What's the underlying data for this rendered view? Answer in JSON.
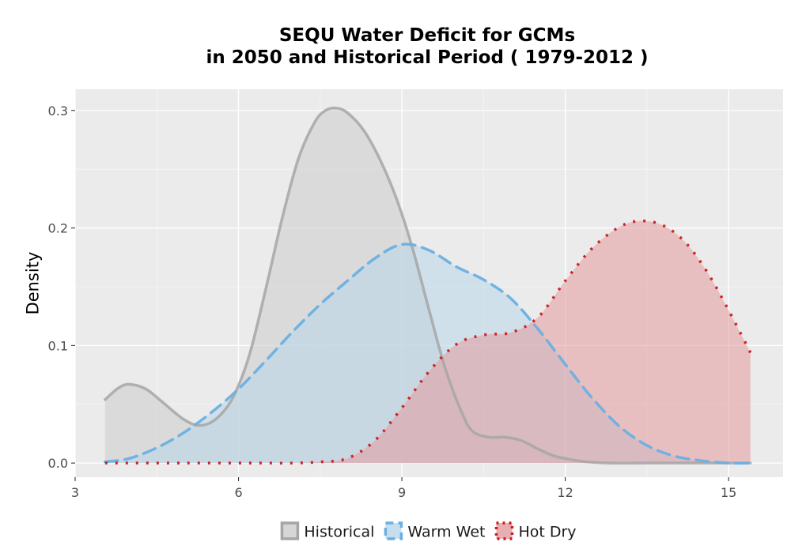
{
  "chart_data": {
    "type": "area",
    "title": "SEQU  Water Deficit for GCMs",
    "subtitle": "in 2050 and Historical Period ( 1979-2012 )",
    "xlabel": "",
    "ylabel": "Density",
    "xlim": [
      3,
      16
    ],
    "ylim": [
      -0.012,
      0.318
    ],
    "x_ticks": [
      3,
      6,
      9,
      12,
      15
    ],
    "x_tick_labels": [
      "3",
      "6",
      "9",
      "12",
      "15"
    ],
    "y_ticks": [
      0.0,
      0.1,
      0.2,
      0.3
    ],
    "y_tick_labels": [
      "0.0",
      "0.1",
      "0.2",
      "0.3"
    ],
    "grid": true,
    "legend_position": "bottom",
    "series": [
      {
        "name": "Historical",
        "line_style": "solid",
        "line_color": "#a6a6a6",
        "fill_color": "#cccccc",
        "x": [
          3.55,
          3.8,
          4.0,
          4.3,
          4.6,
          5.0,
          5.3,
          5.6,
          5.9,
          6.2,
          6.5,
          6.8,
          7.1,
          7.4,
          7.6,
          7.8,
          8.0,
          8.3,
          8.6,
          8.9,
          9.2,
          9.5,
          9.8,
          10.1,
          10.3,
          10.6,
          10.9,
          11.2,
          11.5,
          11.8,
          12.1,
          12.4,
          12.8,
          13.5,
          14.5,
          15.4
        ],
        "y": [
          0.054,
          0.064,
          0.067,
          0.063,
          0.052,
          0.037,
          0.032,
          0.038,
          0.056,
          0.092,
          0.148,
          0.208,
          0.259,
          0.29,
          0.3,
          0.302,
          0.298,
          0.283,
          0.258,
          0.225,
          0.182,
          0.13,
          0.08,
          0.043,
          0.027,
          0.022,
          0.022,
          0.019,
          0.012,
          0.006,
          0.003,
          0.001,
          0.0,
          0.0,
          0.0,
          0.0
        ]
      },
      {
        "name": "Warm Wet",
        "line_style": "dashed",
        "line_color": "#6cb0e0",
        "fill_color": "#b8d7ea",
        "x": [
          3.55,
          4.0,
          4.5,
          5.0,
          5.5,
          6.0,
          6.5,
          7.0,
          7.5,
          8.0,
          8.5,
          9.0,
          9.5,
          10.0,
          10.5,
          11.0,
          11.5,
          12.0,
          12.5,
          13.0,
          13.5,
          14.0,
          14.5,
          15.0,
          15.4
        ],
        "y": [
          0.001,
          0.004,
          0.013,
          0.026,
          0.043,
          0.063,
          0.087,
          0.112,
          0.135,
          0.155,
          0.174,
          0.186,
          0.181,
          0.167,
          0.156,
          0.14,
          0.114,
          0.084,
          0.055,
          0.031,
          0.015,
          0.006,
          0.002,
          0.0,
          0.0
        ]
      },
      {
        "name": "Hot Dry",
        "line_style": "dotted",
        "line_color": "#cc1a1a",
        "fill_color": "#e39a9e",
        "x": [
          3.55,
          5.0,
          6.5,
          7.0,
          7.5,
          8.0,
          8.5,
          9.0,
          9.5,
          10.0,
          10.5,
          11.0,
          11.5,
          12.0,
          12.5,
          13.0,
          13.4,
          13.8,
          14.2,
          14.6,
          15.0,
          15.4
        ],
        "y": [
          0.0,
          0.0,
          0.0,
          0.0,
          0.001,
          0.004,
          0.019,
          0.047,
          0.078,
          0.101,
          0.109,
          0.111,
          0.124,
          0.155,
          0.183,
          0.201,
          0.206,
          0.202,
          0.188,
          0.163,
          0.13,
          0.094
        ]
      }
    ]
  }
}
